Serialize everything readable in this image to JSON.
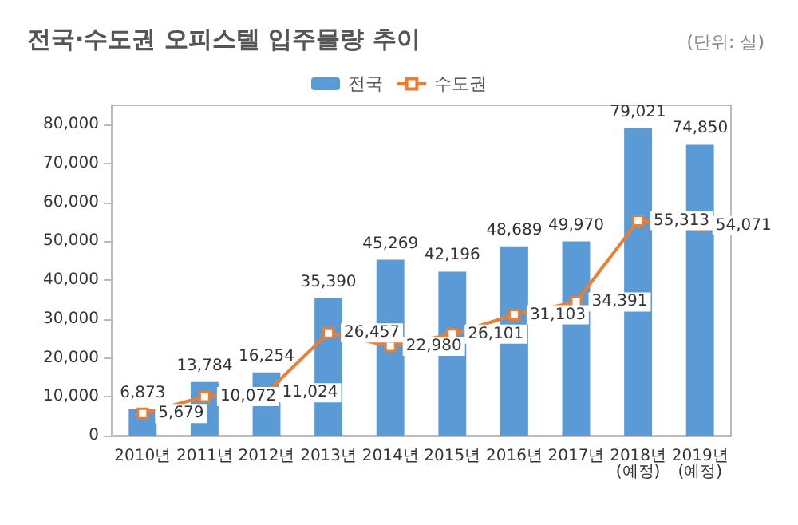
{
  "chart_data": {
    "type": "bar",
    "title": "전국·수도권 오피스텔 입주물량 추이",
    "annotations": [
      "(단위: 실)"
    ],
    "categories": [
      "2010년",
      "2011년",
      "2012년",
      "2013년",
      "2014년",
      "2015년",
      "2016년",
      "2017년",
      "2018년\n(예정)",
      "2019년\n(예정)"
    ],
    "series": [
      {
        "name": "전국",
        "color": "#5b9bd5",
        "values": [
          6873,
          13784,
          16254,
          35390,
          45269,
          42196,
          48689,
          49970,
          79021,
          74850
        ],
        "value_labels": [
          "6,873",
          "13,784",
          "16,254",
          "35,390",
          "45,269",
          "42,196",
          "48,689",
          "49,970",
          "79,021",
          "74,850"
        ]
      },
      {
        "name": "수도권",
        "type": "line",
        "color": "#ed7d31",
        "marker": "square",
        "values": [
          5679,
          10072,
          11024,
          26457,
          22980,
          26101,
          31103,
          34391,
          55313,
          54071
        ],
        "value_labels": [
          "5,679",
          "10,072",
          "11,024",
          "26,457",
          "22,980",
          "26,101",
          "31,103",
          "34,391",
          "55,313",
          "54,071"
        ]
      }
    ],
    "ylim": [
      0,
      85000
    ],
    "yticks": [
      {
        "value": 0,
        "label": "0"
      },
      {
        "value": 10000,
        "label": "10,000"
      },
      {
        "value": 20000,
        "label": "20,000"
      },
      {
        "value": 30000,
        "label": "30,000"
      },
      {
        "value": 40000,
        "label": "40,000"
      },
      {
        "value": 50000,
        "label": "50,000"
      },
      {
        "value": 60000,
        "label": "60,000"
      },
      {
        "value": 70000,
        "label": "70,000"
      },
      {
        "value": 80000,
        "label": "80,000"
      }
    ],
    "grid": false,
    "legend": "top"
  }
}
